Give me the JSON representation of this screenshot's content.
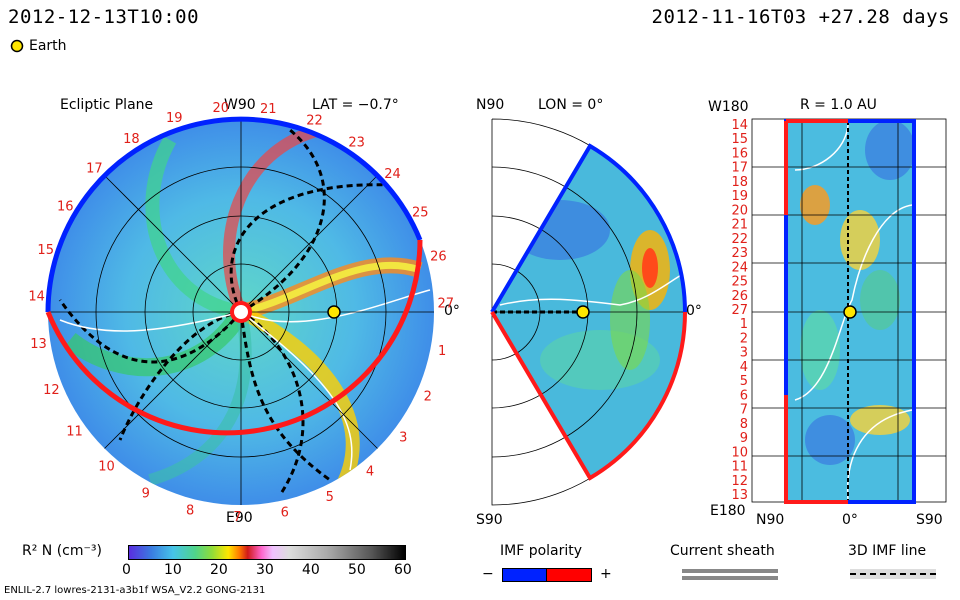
{
  "header": {
    "timestamp_left": "2012-12-13T10:00",
    "timestamp_right": "2012-11-16T03 +27.28 days",
    "earth_legend_label": "Earth"
  },
  "colors": {
    "earth_marker": "#ffe600",
    "positive_polarity": "#ff0000",
    "negative_polarity": "#0022ff",
    "tick_label": "#e0201a"
  },
  "panels": {
    "ecliptic": {
      "title": "Ecliptic Plane",
      "lat_label": "LAT = −0.7°",
      "top_label": "W90",
      "bottom_label": "E90",
      "right_label": "0°",
      "carrington_ticks": [
        "19",
        "20",
        "21",
        "22",
        "23",
        "24",
        "25",
        "26",
        "27",
        "1",
        "2",
        "3",
        "4",
        "5",
        "6",
        "7",
        "8",
        "9",
        "10",
        "11",
        "12",
        "13",
        "14",
        "15",
        "16",
        "17",
        "18"
      ]
    },
    "meridional": {
      "top_label": "N90",
      "title": "LON = 0°",
      "bottom_label": "S90",
      "right_label": "0°"
    },
    "sphere": {
      "top_left_label": "W180",
      "title": "R = 1.0 AU",
      "bottom_left_label": "E180",
      "bottom_x_labels": [
        "N90",
        "0°",
        "S90"
      ],
      "y_ticks": [
        "14",
        "15",
        "16",
        "17",
        "18",
        "19",
        "20",
        "21",
        "22",
        "23",
        "24",
        "25",
        "26",
        "27",
        "1",
        "2",
        "3",
        "4",
        "5",
        "6",
        "7",
        "8",
        "9",
        "10",
        "11",
        "12",
        "13"
      ]
    }
  },
  "colorbar": {
    "label": "R² N (cm⁻³)",
    "ticks": [
      "0",
      "10",
      "20",
      "30",
      "40",
      "50",
      "60"
    ],
    "range": [
      0,
      60
    ]
  },
  "legend": {
    "imf_polarity_title": "IMF polarity",
    "minus": "−",
    "plus": "+",
    "current_sheath": "Current sheath",
    "imf_line_3d": "3D IMF line"
  },
  "footer": {
    "model_info": "ENLIL-2.7 lowres-2131-a3b1f WSA_V2.2 GONG-2131"
  }
}
